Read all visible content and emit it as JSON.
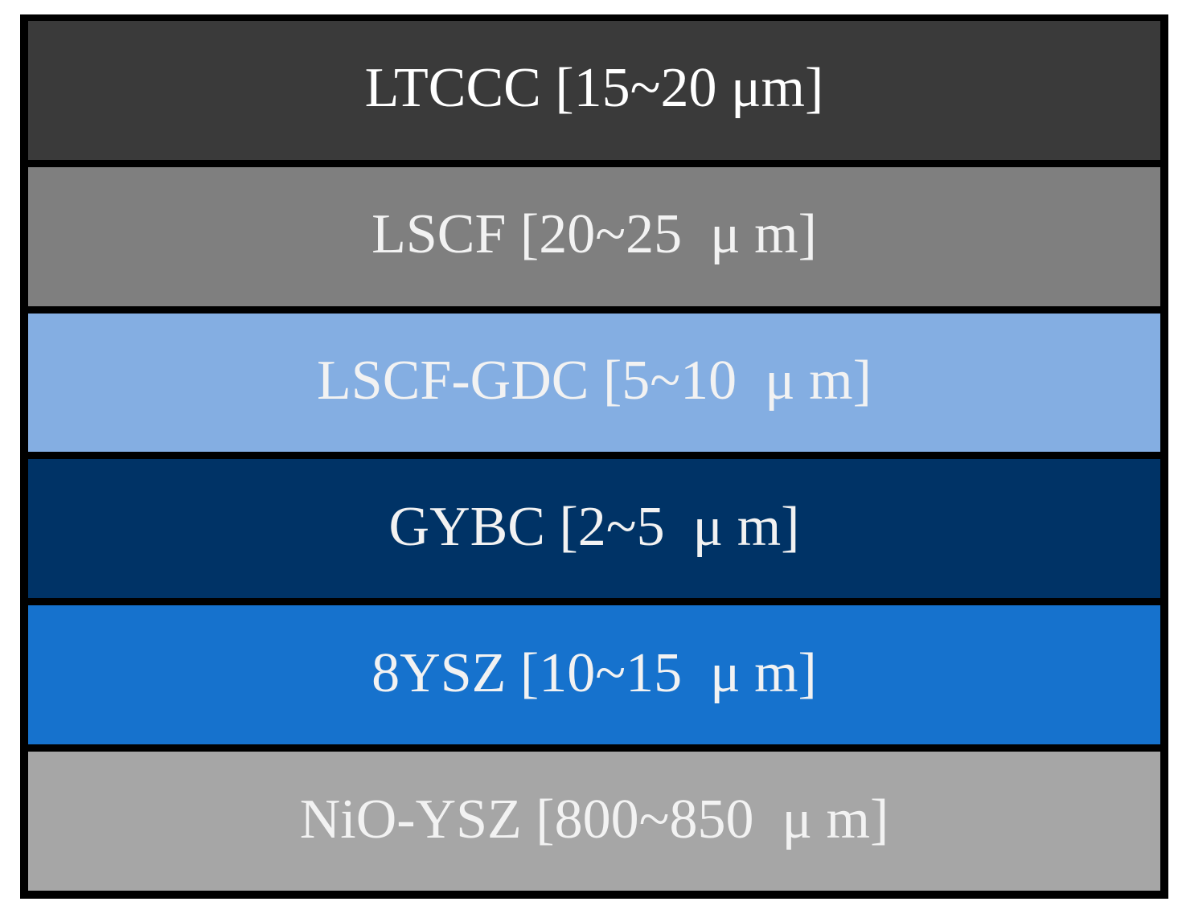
{
  "diagram": {
    "layers": [
      {
        "label": "LTCCC [15~20 μm]",
        "color": "#3a3a3a",
        "text_color": "#ffffff"
      },
      {
        "label": "LSCF [20~25  μ m]",
        "color": "#7f7f7f",
        "text_color": "#f2f2f2"
      },
      {
        "label": "LSCF-GDC [5~10  μ m]",
        "color": "#84aee2",
        "text_color": "#f2f2f2"
      },
      {
        "label": "GYBC [2~5  μ m]",
        "color": "#003366",
        "text_color": "#f2f2f2"
      },
      {
        "label": "8YSZ [10~15  μ m]",
        "color": "#1672cd",
        "text_color": "#f2f2f2"
      },
      {
        "label": "NiO-YSZ [800~850  μ m]",
        "color": "#a6a6a6",
        "text_color": "#f2f2f2"
      }
    ]
  }
}
